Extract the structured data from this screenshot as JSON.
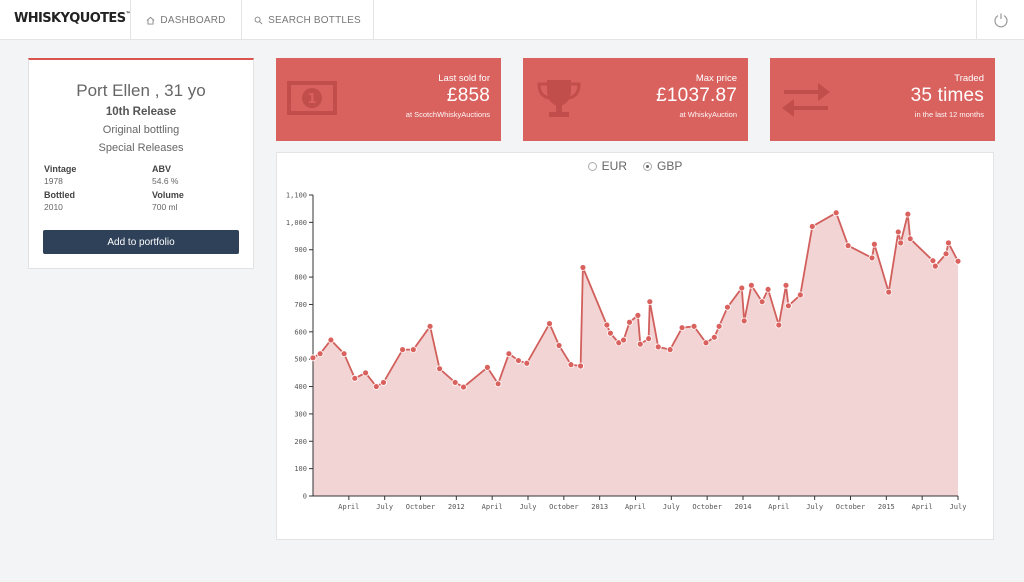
{
  "brand": {
    "logo_text": "WHISKYQUOTES",
    "logo_tm": "™"
  },
  "nav": {
    "dashboard_label": "DASHBOARD",
    "search_label": "SEARCH BOTTLES",
    "icons": {
      "dashboard": "home-icon",
      "search": "search-icon",
      "power": "power-icon"
    }
  },
  "product": {
    "name": "Port Ellen , 31 yo",
    "release": "10th Release",
    "bottling": "Original bottling",
    "series": "Special Releases",
    "vintage_label": "Vintage",
    "vintage": "1978",
    "abv_label": "ABV",
    "abv": "54.6 %",
    "bottled_label": "Bottled",
    "bottled": "2010",
    "volume_label": "Volume",
    "volume": "700 ml",
    "add_label": "Add to portfolio"
  },
  "stats": [
    {
      "title": "Last sold for",
      "value": "£858",
      "sub": "at ScotchWhiskyAuctions",
      "icon": "banknote-icon"
    },
    {
      "title": "Max price",
      "value": "£1037.87",
      "sub": "at WhiskyAuction",
      "icon": "trophy-icon"
    },
    {
      "title": "Traded",
      "value": "35 times",
      "sub": "in the last 12 months",
      "icon": "exchange-arrows-icon"
    }
  ],
  "currency": {
    "options": [
      "EUR",
      "GBP"
    ],
    "selected": "GBP"
  },
  "colors": {
    "accent": "#d9625f",
    "line": "#d15f5c",
    "area": "#f2d4d4",
    "button": "#2e4159"
  },
  "chart_data": {
    "type": "area",
    "title": "",
    "xlabel": "",
    "ylabel": "",
    "ylim": [
      0,
      1100
    ],
    "yticks": [
      0,
      100,
      200,
      300,
      400,
      500,
      600,
      700,
      800,
      900,
      1000,
      1100
    ],
    "ytick_labels": [
      "0",
      "100",
      "200",
      "300",
      "400",
      "500",
      "600",
      "700",
      "800",
      "900",
      "1,000",
      "1,100"
    ],
    "xlim": [
      0,
      54
    ],
    "xticks": [
      {
        "x": 3,
        "label": "April"
      },
      {
        "x": 6,
        "label": "July"
      },
      {
        "x": 9,
        "label": "October"
      },
      {
        "x": 12,
        "label": "2012"
      },
      {
        "x": 15,
        "label": "April"
      },
      {
        "x": 18,
        "label": "July"
      },
      {
        "x": 21,
        "label": "October"
      },
      {
        "x": 24,
        "label": "2013"
      },
      {
        "x": 27,
        "label": "April"
      },
      {
        "x": 30,
        "label": "July"
      },
      {
        "x": 33,
        "label": "October"
      },
      {
        "x": 36,
        "label": "2014"
      },
      {
        "x": 39,
        "label": "April"
      },
      {
        "x": 42,
        "label": "July"
      },
      {
        "x": 45,
        "label": "October"
      },
      {
        "x": 48,
        "label": "2015"
      },
      {
        "x": 51,
        "label": "April"
      },
      {
        "x": 54,
        "label": "July"
      }
    ],
    "grid": false,
    "legend": "none",
    "series": [
      {
        "values": [
          [
            0.0,
            505
          ],
          [
            0.6,
            520
          ],
          [
            1.5,
            570
          ],
          [
            2.6,
            520
          ],
          [
            3.5,
            430
          ],
          [
            4.4,
            450
          ],
          [
            5.3,
            400
          ],
          [
            5.9,
            415
          ],
          [
            7.5,
            535
          ],
          [
            8.4,
            535
          ],
          [
            9.8,
            620
          ],
          [
            10.6,
            465
          ],
          [
            11.9,
            415
          ],
          [
            12.6,
            398
          ],
          [
            14.6,
            470
          ],
          [
            15.5,
            410
          ],
          [
            16.4,
            520
          ],
          [
            17.2,
            495
          ],
          [
            17.9,
            485
          ],
          [
            19.8,
            630
          ],
          [
            20.6,
            550
          ],
          [
            21.6,
            480
          ],
          [
            22.4,
            475
          ],
          [
            22.6,
            835
          ],
          [
            24.6,
            625
          ],
          [
            24.9,
            595
          ],
          [
            25.6,
            560
          ],
          [
            26.0,
            570
          ],
          [
            26.5,
            635
          ],
          [
            27.2,
            660
          ],
          [
            27.4,
            555
          ],
          [
            28.1,
            575
          ],
          [
            28.2,
            710
          ],
          [
            28.9,
            545
          ],
          [
            29.9,
            535
          ],
          [
            30.9,
            615
          ],
          [
            31.9,
            620
          ],
          [
            32.9,
            560
          ],
          [
            33.6,
            580
          ],
          [
            34.0,
            620
          ],
          [
            34.7,
            690
          ],
          [
            35.9,
            760
          ],
          [
            36.1,
            640
          ],
          [
            36.7,
            770
          ],
          [
            37.6,
            710
          ],
          [
            38.1,
            755
          ],
          [
            39.0,
            625
          ],
          [
            39.6,
            770
          ],
          [
            39.8,
            695
          ],
          [
            40.8,
            735
          ],
          [
            41.8,
            985
          ],
          [
            43.8,
            1035
          ],
          [
            44.8,
            915
          ],
          [
            46.8,
            870
          ],
          [
            47.0,
            920
          ],
          [
            48.2,
            745
          ],
          [
            49.0,
            965
          ],
          [
            49.2,
            925
          ],
          [
            49.8,
            1030
          ],
          [
            50.0,
            940
          ],
          [
            51.9,
            860
          ],
          [
            52.1,
            840
          ],
          [
            53.0,
            885
          ],
          [
            53.2,
            925
          ],
          [
            54.0,
            858
          ]
        ]
      }
    ]
  }
}
